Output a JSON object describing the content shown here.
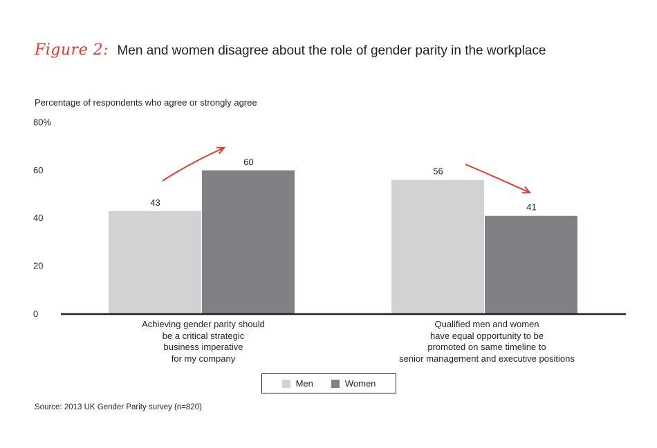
{
  "title": {
    "figure_label": "Figure 2:",
    "text": "Men and women disagree about the role of gender parity in the workplace"
  },
  "source": "Source: 2013 UK Gender Parity survey (n=820)",
  "colors": {
    "men": "#d1d2d4",
    "women": "#808184",
    "arrow": "#e03a31",
    "axis": "#231f20"
  },
  "chart_data": {
    "type": "bar",
    "ylabel": "Percentage of respondents who agree or strongly agree",
    "ylim": [
      0,
      80
    ],
    "yticks": [
      "0",
      "20",
      "40",
      "60",
      "80%"
    ],
    "categories": [
      [
        "Achieving gender parity should",
        "be a critical strategic",
        "business imperative",
        "for my company"
      ],
      [
        "Qualified men and women",
        "have equal opportunity to be",
        "promoted on same timeline to",
        "senior management and executive positions"
      ]
    ],
    "series": [
      {
        "name": "Men",
        "values": [
          43,
          56
        ]
      },
      {
        "name": "Women",
        "values": [
          60,
          41
        ]
      }
    ],
    "legend": "bottom-center",
    "grid": false
  }
}
